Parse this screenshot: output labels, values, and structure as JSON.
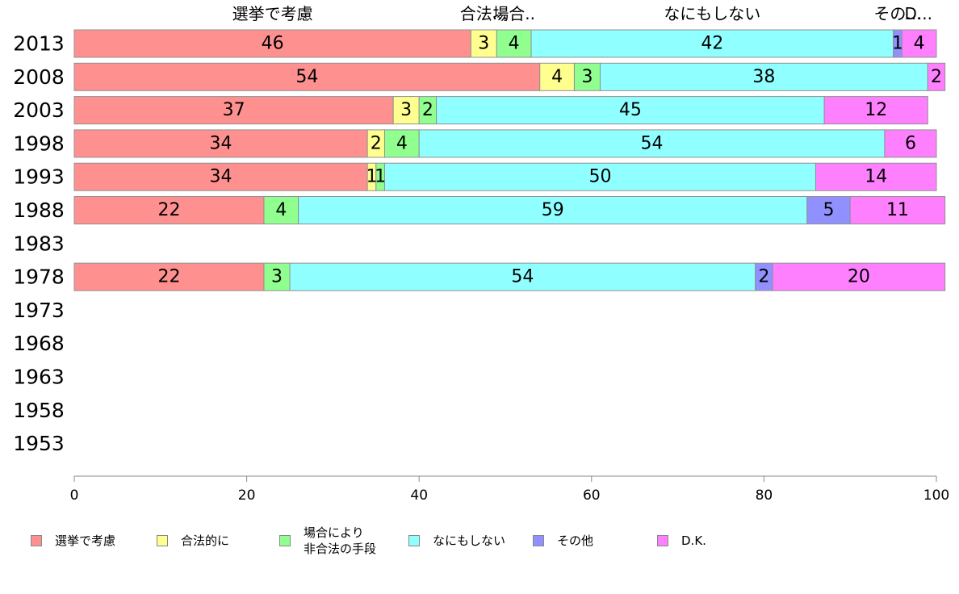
{
  "chart_data": {
    "type": "bar",
    "orientation": "horizontal",
    "stacked": true,
    "categories": [
      "2013",
      "2008",
      "2003",
      "1998",
      "1993",
      "1988",
      "1983",
      "1978",
      "1973",
      "1968",
      "1963",
      "1958",
      "1953"
    ],
    "series": [
      {
        "name": "選挙で考慮",
        "color": "#ff9090",
        "values": [
          46,
          54,
          37,
          34,
          34,
          22,
          null,
          22,
          null,
          null,
          null,
          null,
          null
        ]
      },
      {
        "name": "合法的に",
        "color": "#ffff90",
        "values": [
          3,
          4,
          3,
          2,
          1,
          null,
          null,
          null,
          null,
          null,
          null,
          null,
          null
        ]
      },
      {
        "name": "場合により\n非合法の手段",
        "color": "#90ff90",
        "values": [
          4,
          3,
          2,
          4,
          1,
          4,
          null,
          3,
          null,
          null,
          null,
          null,
          null
        ]
      },
      {
        "name": "なにもしない",
        "color": "#90ffff",
        "values": [
          42,
          38,
          45,
          54,
          50,
          59,
          null,
          54,
          null,
          null,
          null,
          null,
          null
        ]
      },
      {
        "name": "その他",
        "color": "#9090ff",
        "values": [
          1,
          null,
          null,
          null,
          null,
          5,
          null,
          2,
          null,
          null,
          null,
          null,
          null
        ]
      },
      {
        "name": "D.K.",
        "color": "#ff80ff",
        "values": [
          4,
          2,
          12,
          6,
          14,
          11,
          null,
          20,
          null,
          null,
          null,
          null,
          null
        ]
      }
    ],
    "top_labels": [
      "選挙で考慮",
      "合法...",
      "場合..",
      "なにもしない",
      "その...",
      "D..."
    ],
    "xlim": [
      0,
      100
    ],
    "xticks": [
      0,
      20,
      40,
      60,
      80,
      100
    ],
    "grid": false,
    "legend_position": "bottom"
  }
}
